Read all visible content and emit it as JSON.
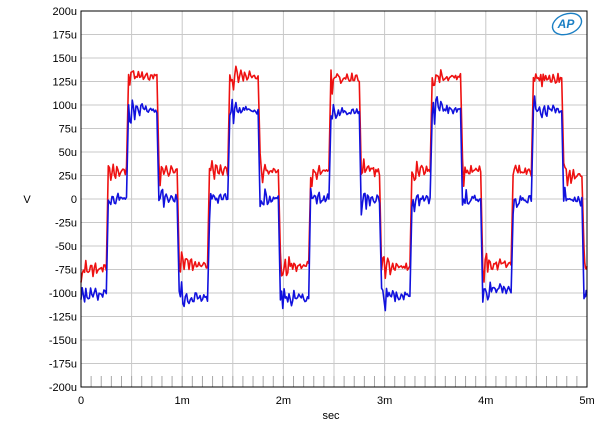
{
  "chart_data": {
    "type": "line",
    "title": "",
    "xlabel": "sec",
    "ylabel": "V",
    "xlim": [
      0,
      5
    ],
    "ylim": [
      -200,
      200
    ],
    "x_unit": "ms",
    "y_unit": "µV",
    "x_ticks": [
      0,
      1,
      2,
      3,
      4,
      5
    ],
    "x_tick_labels": [
      "0",
      "1m",
      "2m",
      "3m",
      "4m",
      "5m"
    ],
    "y_ticks": [
      200,
      175,
      150,
      125,
      100,
      75,
      50,
      25,
      0,
      -25,
      -50,
      -75,
      -100,
      -125,
      -150,
      -175,
      -200
    ],
    "y_tick_labels": [
      "200u",
      "175u",
      "150u",
      "125u",
      "100u",
      "75u",
      "50u",
      "25u",
      "0",
      "-25u",
      "-50u",
      "-75u",
      "-100u",
      "-125u",
      "-150u",
      "-175u",
      "-200u"
    ],
    "grid": true,
    "logo": "AP",
    "period_ms": 1.0,
    "series": [
      {
        "color": "#ee1111",
        "levels": [
          {
            "x0": 0.0,
            "x1": 0.25,
            "y": -75
          },
          {
            "x0": 0.27,
            "x1": 0.45,
            "y": 30
          },
          {
            "x0": 0.47,
            "x1": 0.75,
            "y": 130
          },
          {
            "x0": 0.77,
            "x1": 0.95,
            "y": 30
          },
          {
            "x0": 0.97,
            "x1": 1.25,
            "y": -70
          },
          {
            "x0": 1.27,
            "x1": 1.45,
            "y": 30
          },
          {
            "x0": 1.47,
            "x1": 1.75,
            "y": 130
          },
          {
            "x0": 1.77,
            "x1": 1.95,
            "y": 30
          },
          {
            "x0": 1.97,
            "x1": 2.25,
            "y": -70
          },
          {
            "x0": 2.27,
            "x1": 2.45,
            "y": 30
          },
          {
            "x0": 2.47,
            "x1": 2.75,
            "y": 128
          },
          {
            "x0": 2.77,
            "x1": 2.95,
            "y": 30
          },
          {
            "x0": 2.97,
            "x1": 3.25,
            "y": -72
          },
          {
            "x0": 3.27,
            "x1": 3.45,
            "y": 30
          },
          {
            "x0": 3.47,
            "x1": 3.75,
            "y": 130
          },
          {
            "x0": 3.77,
            "x1": 3.95,
            "y": 30
          },
          {
            "x0": 3.97,
            "x1": 4.25,
            "y": -70
          },
          {
            "x0": 4.27,
            "x1": 4.45,
            "y": 30
          },
          {
            "x0": 4.47,
            "x1": 4.75,
            "y": 128
          },
          {
            "x0": 4.77,
            "x1": 4.95,
            "y": 25
          },
          {
            "x0": 4.97,
            "x1": 5.0,
            "y": -72
          }
        ]
      },
      {
        "color": "#1111dd",
        "levels": [
          {
            "x0": 0.0,
            "x1": 0.25,
            "y": -102
          },
          {
            "x0": 0.27,
            "x1": 0.45,
            "y": 0
          },
          {
            "x0": 0.47,
            "x1": 0.75,
            "y": 95
          },
          {
            "x0": 0.77,
            "x1": 0.95,
            "y": 0
          },
          {
            "x0": 0.97,
            "x1": 1.25,
            "y": -105
          },
          {
            "x0": 1.27,
            "x1": 1.45,
            "y": 0
          },
          {
            "x0": 1.47,
            "x1": 1.75,
            "y": 95
          },
          {
            "x0": 1.77,
            "x1": 1.95,
            "y": 0
          },
          {
            "x0": 1.97,
            "x1": 2.25,
            "y": -105
          },
          {
            "x0": 2.27,
            "x1": 2.45,
            "y": 0
          },
          {
            "x0": 2.47,
            "x1": 2.75,
            "y": 92
          },
          {
            "x0": 2.77,
            "x1": 2.95,
            "y": 0
          },
          {
            "x0": 2.97,
            "x1": 3.25,
            "y": -103
          },
          {
            "x0": 3.27,
            "x1": 3.45,
            "y": 0
          },
          {
            "x0": 3.47,
            "x1": 3.75,
            "y": 95
          },
          {
            "x0": 3.77,
            "x1": 3.95,
            "y": 0
          },
          {
            "x0": 3.97,
            "x1": 4.25,
            "y": -95
          },
          {
            "x0": 4.27,
            "x1": 4.45,
            "y": 0
          },
          {
            "x0": 4.47,
            "x1": 4.75,
            "y": 95
          },
          {
            "x0": 4.77,
            "x1": 4.95,
            "y": -2
          },
          {
            "x0": 4.97,
            "x1": 5.0,
            "y": -100
          }
        ]
      }
    ]
  }
}
